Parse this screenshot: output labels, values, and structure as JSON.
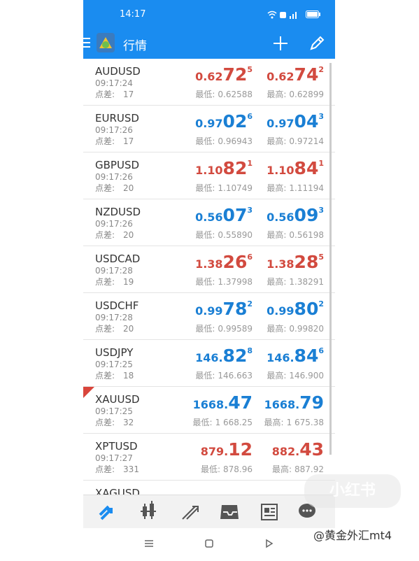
{
  "status_bar": {
    "time": "14:17"
  },
  "header": {
    "title": "行情"
  },
  "quotes": {
    "spread_label": "点差:",
    "low_label": "最低:",
    "high_label": "最高:",
    "rows": [
      {
        "symbol": "AUDUSD",
        "time": "09:17:24",
        "spread": 17,
        "bid": {
          "head": "0.62",
          "big": "72",
          "sup": "5",
          "color": "#d24a3f"
        },
        "ask": {
          "head": "0.62",
          "big": "74",
          "sup": "2",
          "color": "#d24a3f"
        },
        "low": "0.62588",
        "high": "0.62899"
      },
      {
        "symbol": "EURUSD",
        "time": "09:17:26",
        "spread": 17,
        "bid": {
          "head": "0.97",
          "big": "02",
          "sup": "6",
          "color": "#1a7fd4"
        },
        "ask": {
          "head": "0.97",
          "big": "04",
          "sup": "3",
          "color": "#1a7fd4"
        },
        "low": "0.96943",
        "high": "0.97214"
      },
      {
        "symbol": "GBPUSD",
        "time": "09:17:26",
        "spread": 20,
        "bid": {
          "head": "1.10",
          "big": "82",
          "sup": "1",
          "color": "#d24a3f"
        },
        "ask": {
          "head": "1.10",
          "big": "84",
          "sup": "1",
          "color": "#d24a3f"
        },
        "low": "1.10749",
        "high": "1.11194"
      },
      {
        "symbol": "NZDUSD",
        "time": "09:17:26",
        "spread": 20,
        "bid": {
          "head": "0.56",
          "big": "07",
          "sup": "3",
          "color": "#1a7fd4"
        },
        "ask": {
          "head": "0.56",
          "big": "09",
          "sup": "3",
          "color": "#1a7fd4"
        },
        "low": "0.55890",
        "high": "0.56198"
      },
      {
        "symbol": "USDCAD",
        "time": "09:17:28",
        "spread": 19,
        "bid": {
          "head": "1.38",
          "big": "26",
          "sup": "6",
          "color": "#d24a3f"
        },
        "ask": {
          "head": "1.38",
          "big": "28",
          "sup": "5",
          "color": "#d24a3f"
        },
        "low": "1.37998",
        "high": "1.38291"
      },
      {
        "symbol": "USDCHF",
        "time": "09:17:28",
        "spread": 20,
        "bid": {
          "head": "0.99",
          "big": "78",
          "sup": "2",
          "color": "#1a7fd4"
        },
        "ask": {
          "head": "0.99",
          "big": "80",
          "sup": "2",
          "color": "#1a7fd4"
        },
        "low": "0.99589",
        "high": "0.99820"
      },
      {
        "symbol": "USDJPY",
        "time": "09:17:25",
        "spread": 18,
        "bid": {
          "head": "146.",
          "big": "82",
          "sup": "8",
          "color": "#1a7fd4"
        },
        "ask": {
          "head": "146.",
          "big": "84",
          "sup": "6",
          "color": "#1a7fd4"
        },
        "low": "146.663",
        "high": "146.900"
      },
      {
        "symbol": "XAUUSD",
        "time": "09:17:25",
        "spread": 32,
        "bid": {
          "head": "1668.",
          "big": "47",
          "color": "#1a7fd4"
        },
        "ask": {
          "head": "1668.",
          "big": "79",
          "color": "#1a7fd4"
        },
        "low": "1 668.25",
        "high": "1 675.38",
        "marked": true
      },
      {
        "symbol": "XPTUSD",
        "time": "09:17:27",
        "spread": 331,
        "bid": {
          "head": "879.",
          "big": "12",
          "color": "#d24a3f"
        },
        "ask": {
          "head": "882.",
          "big": "43",
          "color": "#d24a3f"
        },
        "low": "878.96",
        "high": "887.92"
      },
      {
        "symbol": "XAGUSD"
      }
    ]
  },
  "watermark": {
    "brand": "小红书",
    "user": "@黄金外汇mt4"
  }
}
